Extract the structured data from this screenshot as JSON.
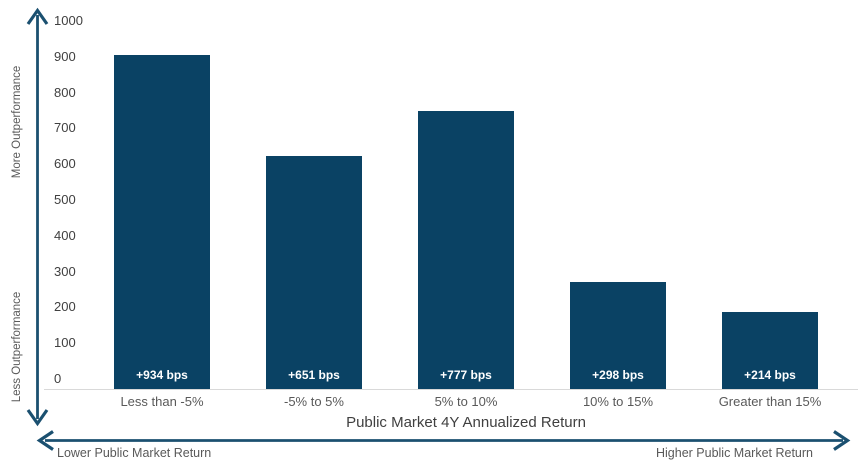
{
  "chart_data": {
    "type": "bar",
    "categories": [
      "Less than -5%",
      "-5% to 5%",
      "5% to 10%",
      "10% to 15%",
      "Greater than 15%"
    ],
    "values": [
      934,
      651,
      777,
      298,
      214
    ],
    "bar_labels": [
      "+934 bps",
      "+651 bps",
      "+777 bps",
      "+298 bps",
      "+214 bps"
    ],
    "title": "",
    "xlabel": "Public Market 4Y Annualized Return",
    "ylabel": "",
    "ylim": [
      0,
      1000
    ],
    "ytick_step": 100,
    "grid": "off",
    "legend": "none",
    "annotations": {
      "y_top": "More Outperformance",
      "y_bottom": "Less Outperformance",
      "x_left": "Lower Public Market Return",
      "x_right": "Higher Public Market Return"
    }
  },
  "colors": {
    "bar": "#0a4264",
    "arrow": "#1b5070",
    "tick_label": "#404040",
    "category_label": "#595959",
    "bar_value_label": "#ffffff",
    "baseline": "#d9d9d9"
  }
}
